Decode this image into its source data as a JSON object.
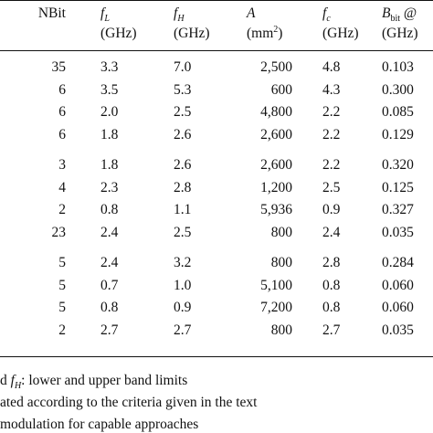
{
  "header": {
    "nbit": "NBit",
    "fl_base": "f",
    "fl_sub": "L",
    "fl_unit": "(GHz)",
    "fh_base": "f",
    "fh_sub": "H",
    "fh_unit": "(GHz)",
    "a_base": "A",
    "a_unit_pre": "(mm",
    "a_unit_sup": "2",
    "a_unit_post": ")",
    "fc_base": "f",
    "fc_sub": "c",
    "fc_unit": "(GHz)",
    "b_base": "B",
    "b_sub": "bit",
    "b_tail": " @",
    "b_unit": "(GHz)"
  },
  "groups": [
    [
      {
        "nbit": "35",
        "fl": "3.3",
        "fh": "7.0",
        "a": "2,500",
        "fc": "4.8",
        "b": "0.103"
      },
      {
        "nbit": "6",
        "fl": "3.5",
        "fh": "5.3",
        "a": "600",
        "fc": "4.3",
        "b": "0.300"
      },
      {
        "nbit": "6",
        "fl": "2.0",
        "fh": "2.5",
        "a": "4,800",
        "fc": "2.2",
        "b": "0.085"
      },
      {
        "nbit": "6",
        "fl": "1.8",
        "fh": "2.6",
        "a": "2,600",
        "fc": "2.2",
        "b": "0.129"
      }
    ],
    [
      {
        "nbit": "3",
        "fl": "1.8",
        "fh": "2.6",
        "a": "2,600",
        "fc": "2.2",
        "b": "0.320"
      },
      {
        "nbit": "4",
        "fl": "2.3",
        "fh": "2.8",
        "a": "1,200",
        "fc": "2.5",
        "b": "0.125"
      },
      {
        "nbit": "2",
        "fl": "0.8",
        "fh": "1.1",
        "a": "5,936",
        "fc": "0.9",
        "b": "0.327"
      },
      {
        "nbit": "23",
        "fl": "2.4",
        "fh": "2.5",
        "a": "800",
        "fc": "2.4",
        "b": "0.035"
      }
    ],
    [
      {
        "nbit": "5",
        "fl": "2.4",
        "fh": "3.2",
        "a": "800",
        "fc": "2.8",
        "b": "0.284"
      },
      {
        "nbit": "5",
        "fl": "0.7",
        "fh": "1.0",
        "a": "5,100",
        "fc": "0.8",
        "b": "0.060"
      },
      {
        "nbit": "5",
        "fl": "0.8",
        "fh": "0.9",
        "a": "7,200",
        "fc": "0.8",
        "b": "0.060"
      },
      {
        "nbit": "2",
        "fl": "2.7",
        "fh": "2.7",
        "a": "800",
        "fc": "2.7",
        "b": "0.035"
      }
    ]
  ],
  "footnotes": {
    "line1_pre": "d ",
    "line1_f": "f",
    "line1_sub": "H",
    "line1_post": ": lower and upper band limits",
    "line2": "ated according to the criteria given in the text",
    "line3": "modulation for capable approaches"
  }
}
